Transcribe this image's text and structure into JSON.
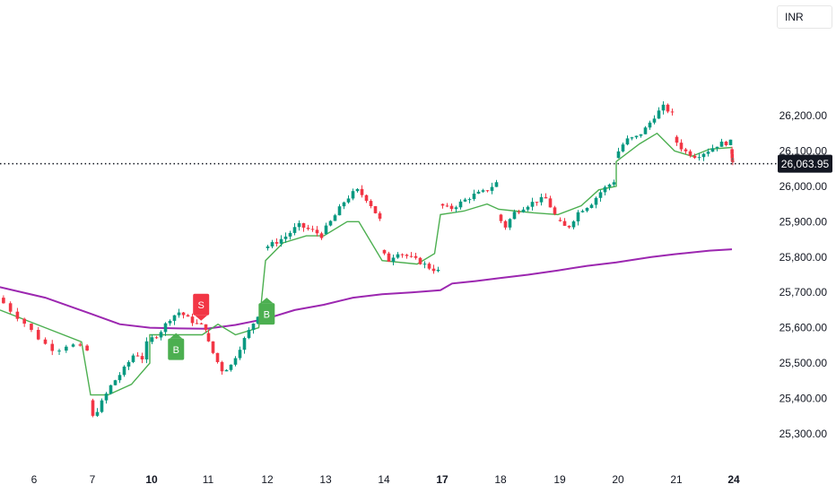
{
  "header": {
    "currency": "INR"
  },
  "chart_data": {
    "type": "candlestick",
    "title": "",
    "xlabel": "",
    "ylabel": "",
    "ylim": [
      25250,
      26300
    ],
    "y_ticks": [
      25300,
      25400,
      25500,
      25600,
      25700,
      25800,
      25900,
      26000,
      26100,
      26200
    ],
    "y_tick_labels": [
      "25,300.00",
      "25,400.00",
      "25,500.00",
      "25,600.00",
      "25,700.00",
      "25,800.00",
      "25,900.00",
      "26,000.00",
      "26,100.00",
      "26,200.00"
    ],
    "x_ticks": [
      {
        "label": "6",
        "bold": false
      },
      {
        "label": "7",
        "bold": false
      },
      {
        "label": "10",
        "bold": true
      },
      {
        "label": "11",
        "bold": false
      },
      {
        "label": "12",
        "bold": false
      },
      {
        "label": "13",
        "bold": false
      },
      {
        "label": "14",
        "bold": false
      },
      {
        "label": "17",
        "bold": true
      },
      {
        "label": "18",
        "bold": false
      },
      {
        "label": "19",
        "bold": false
      },
      {
        "label": "20",
        "bold": false
      },
      {
        "label": "21",
        "bold": false
      },
      {
        "label": "24",
        "bold": true
      }
    ],
    "last_price": 26063.95,
    "last_price_label": "26,063.95",
    "colors": {
      "up": "#089981",
      "down": "#f23645",
      "trail": "#4caf50",
      "ma": "#9c27b0",
      "buy": "#4caf50",
      "sell": "#f23645",
      "grid_text": "#131722"
    },
    "signals": [
      {
        "type": "B",
        "day": 2,
        "pos": 0.45,
        "price": 25590
      },
      {
        "type": "S",
        "day": 2,
        "pos": 0.88,
        "price": 25615
      },
      {
        "type": "B",
        "day": 4,
        "pos": 0.02,
        "price": 25690
      }
    ],
    "days": [
      {
        "label": "6",
        "open": 25685,
        "anchors": [
          [
            0,
            25690
          ],
          [
            0.15,
            25650
          ],
          [
            0.3,
            25615
          ],
          [
            0.5,
            25560
          ],
          [
            0.65,
            25535
          ],
          [
            0.8,
            25555
          ],
          [
            1,
            25535
          ]
        ]
      },
      {
        "label": "7",
        "open": 25395,
        "anchors": [
          [
            0,
            25395
          ],
          [
            0.05,
            25340
          ],
          [
            0.2,
            25380
          ],
          [
            0.4,
            25440
          ],
          [
            0.6,
            25480
          ],
          [
            0.8,
            25530
          ],
          [
            0.95,
            25510
          ],
          [
            1,
            25555
          ]
        ]
      },
      {
        "label": "10",
        "open": 25560,
        "anchors": [
          [
            0,
            25560
          ],
          [
            0.2,
            25585
          ],
          [
            0.4,
            25630
          ],
          [
            0.55,
            25645
          ],
          [
            0.7,
            25625
          ],
          [
            0.85,
            25610
          ],
          [
            1,
            25600
          ]
        ]
      },
      {
        "label": "11",
        "open": 25585,
        "anchors": [
          [
            0,
            25585
          ],
          [
            0.15,
            25530
          ],
          [
            0.3,
            25480
          ],
          [
            0.45,
            25490
          ],
          [
            0.6,
            25540
          ],
          [
            0.8,
            25600
          ],
          [
            1,
            25660
          ]
        ]
      },
      {
        "label": "12",
        "open": 25825,
        "anchors": [
          [
            0,
            25825
          ],
          [
            0.2,
            25840
          ],
          [
            0.4,
            25860
          ],
          [
            0.6,
            25890
          ],
          [
            0.75,
            25880
          ],
          [
            0.9,
            25870
          ],
          [
            1,
            25860
          ]
        ]
      },
      {
        "label": "13",
        "open": 25865,
        "anchors": [
          [
            0,
            25865
          ],
          [
            0.2,
            25910
          ],
          [
            0.4,
            25960
          ],
          [
            0.6,
            25990
          ],
          [
            0.8,
            25960
          ],
          [
            1,
            25905
          ]
        ]
      },
      {
        "label": "14",
        "open": 25820,
        "anchors": [
          [
            0,
            25820
          ],
          [
            0.15,
            25790
          ],
          [
            0.3,
            25815
          ],
          [
            0.5,
            25800
          ],
          [
            0.7,
            25785
          ],
          [
            0.85,
            25770
          ],
          [
            1,
            25760
          ]
        ]
      },
      {
        "label": "17",
        "open": 25950,
        "anchors": [
          [
            0,
            25950
          ],
          [
            0.2,
            25935
          ],
          [
            0.4,
            25955
          ],
          [
            0.6,
            25975
          ],
          [
            0.8,
            25985
          ],
          [
            1,
            26010
          ]
        ]
      },
      {
        "label": "18",
        "open": 25920,
        "anchors": [
          [
            0,
            25920
          ],
          [
            0.15,
            25885
          ],
          [
            0.3,
            25925
          ],
          [
            0.5,
            25945
          ],
          [
            0.7,
            25960
          ],
          [
            0.85,
            25965
          ],
          [
            1,
            25920
          ]
        ]
      },
      {
        "label": "19",
        "open": 25905,
        "anchors": [
          [
            0,
            25905
          ],
          [
            0.2,
            25880
          ],
          [
            0.4,
            25930
          ],
          [
            0.6,
            25950
          ],
          [
            0.8,
            25990
          ],
          [
            1,
            26015
          ]
        ]
      },
      {
        "label": "20",
        "open": 26080,
        "anchors": [
          [
            0,
            26080
          ],
          [
            0.2,
            26130
          ],
          [
            0.4,
            26140
          ],
          [
            0.55,
            26165
          ],
          [
            0.7,
            26200
          ],
          [
            0.85,
            26225
          ],
          [
            1,
            26205
          ]
        ]
      },
      {
        "label": "21",
        "open": 26140,
        "anchors": [
          [
            0,
            26140
          ],
          [
            0.2,
            26100
          ],
          [
            0.4,
            26085
          ],
          [
            0.6,
            26100
          ],
          [
            0.8,
            26120
          ],
          [
            1,
            26125
          ]
        ]
      },
      {
        "label": "24",
        "open": 26105,
        "anchors": [
          [
            0,
            26105
          ],
          [
            0.5,
            26080
          ],
          [
            1,
            26064
          ]
        ]
      }
    ],
    "trail_line": [
      [
        0,
        25650
      ],
      [
        0.5,
        25600
      ],
      [
        0.9,
        25560
      ],
      [
        1,
        25410
      ],
      [
        1.3,
        25410
      ],
      [
        1.7,
        25440
      ],
      [
        2,
        25500
      ],
      [
        2,
        25580
      ],
      [
        2.9,
        25580
      ],
      [
        3.2,
        25610
      ],
      [
        3.5,
        25580
      ],
      [
        3.9,
        25600
      ],
      [
        4,
        25790
      ],
      [
        4.3,
        25840
      ],
      [
        4.7,
        25860
      ],
      [
        5,
        25860
      ],
      [
        5.4,
        25900
      ],
      [
        5.6,
        25900
      ],
      [
        6,
        25790
      ],
      [
        6.6,
        25780
      ],
      [
        6.9,
        25810
      ],
      [
        7,
        25920
      ],
      [
        7.4,
        25930
      ],
      [
        7.8,
        25950
      ],
      [
        8,
        25935
      ],
      [
        8.3,
        25930
      ],
      [
        8.6,
        25925
      ],
      [
        9,
        25920
      ],
      [
        9.4,
        25945
      ],
      [
        9.7,
        25990
      ],
      [
        10,
        26000
      ],
      [
        10,
        26070
      ],
      [
        10.4,
        26120
      ],
      [
        10.7,
        26150
      ],
      [
        11,
        26100
      ],
      [
        11.3,
        26085
      ],
      [
        11.6,
        26105
      ],
      [
        12,
        26110
      ]
    ],
    "ma_line": [
      [
        -0.3,
        25730
      ],
      [
        0,
        25715
      ],
      [
        0.5,
        25685
      ],
      [
        1,
        25640
      ],
      [
        1.5,
        25610
      ],
      [
        2,
        25600
      ],
      [
        2.5,
        25598
      ],
      [
        3,
        25597
      ],
      [
        3.5,
        25608
      ],
      [
        4,
        25625
      ],
      [
        4.5,
        25650
      ],
      [
        5,
        25665
      ],
      [
        5.5,
        25685
      ],
      [
        6,
        25695
      ],
      [
        6.5,
        25700
      ],
      [
        7,
        25706
      ],
      [
        7.2,
        25725
      ],
      [
        7.6,
        25732
      ],
      [
        8,
        25740
      ],
      [
        8.5,
        25750
      ],
      [
        9,
        25762
      ],
      [
        9.5,
        25775
      ],
      [
        10,
        25785
      ],
      [
        10.6,
        25800
      ],
      [
        11,
        25808
      ],
      [
        11.6,
        25818
      ],
      [
        12,
        25822
      ]
    ]
  }
}
